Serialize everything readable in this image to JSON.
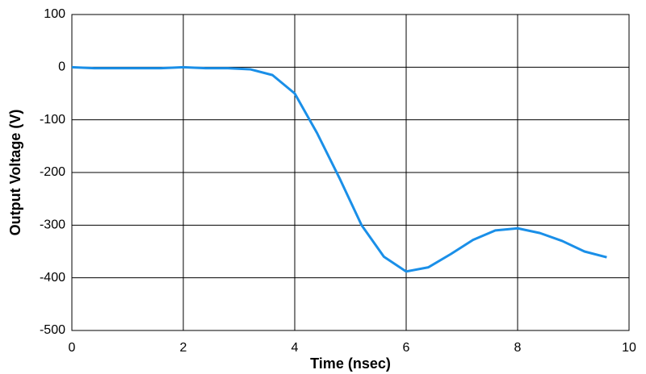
{
  "chart_data": {
    "type": "line",
    "x_label": "Time (nsec)",
    "y_label": "Output Voltage (V)",
    "x": [
      0,
      0.4,
      0.8,
      1.2,
      1.6,
      2,
      2.4,
      2.8,
      3.2,
      3.6,
      4,
      4.4,
      4.8,
      5.2,
      5.6,
      6,
      6.4,
      6.8,
      7.2,
      7.6,
      8,
      8.4,
      8.8,
      9.2,
      9.6
    ],
    "values": [
      0,
      -2,
      -2,
      -2,
      -2,
      0,
      -2,
      -2,
      -4,
      -15,
      -50,
      -125,
      -210,
      -300,
      -360,
      -388,
      -380,
      -355,
      -328,
      -310,
      -306,
      -315,
      -330,
      -350,
      -361
    ],
    "color": "#1a8fe8",
    "xlim": [
      0,
      10
    ],
    "xticks": [
      0,
      2,
      4,
      6,
      8,
      10
    ],
    "ylim": [
      -500,
      100
    ],
    "yticks": [
      -500,
      -400,
      -300,
      -200,
      -100,
      0,
      100
    ],
    "grid": true
  }
}
